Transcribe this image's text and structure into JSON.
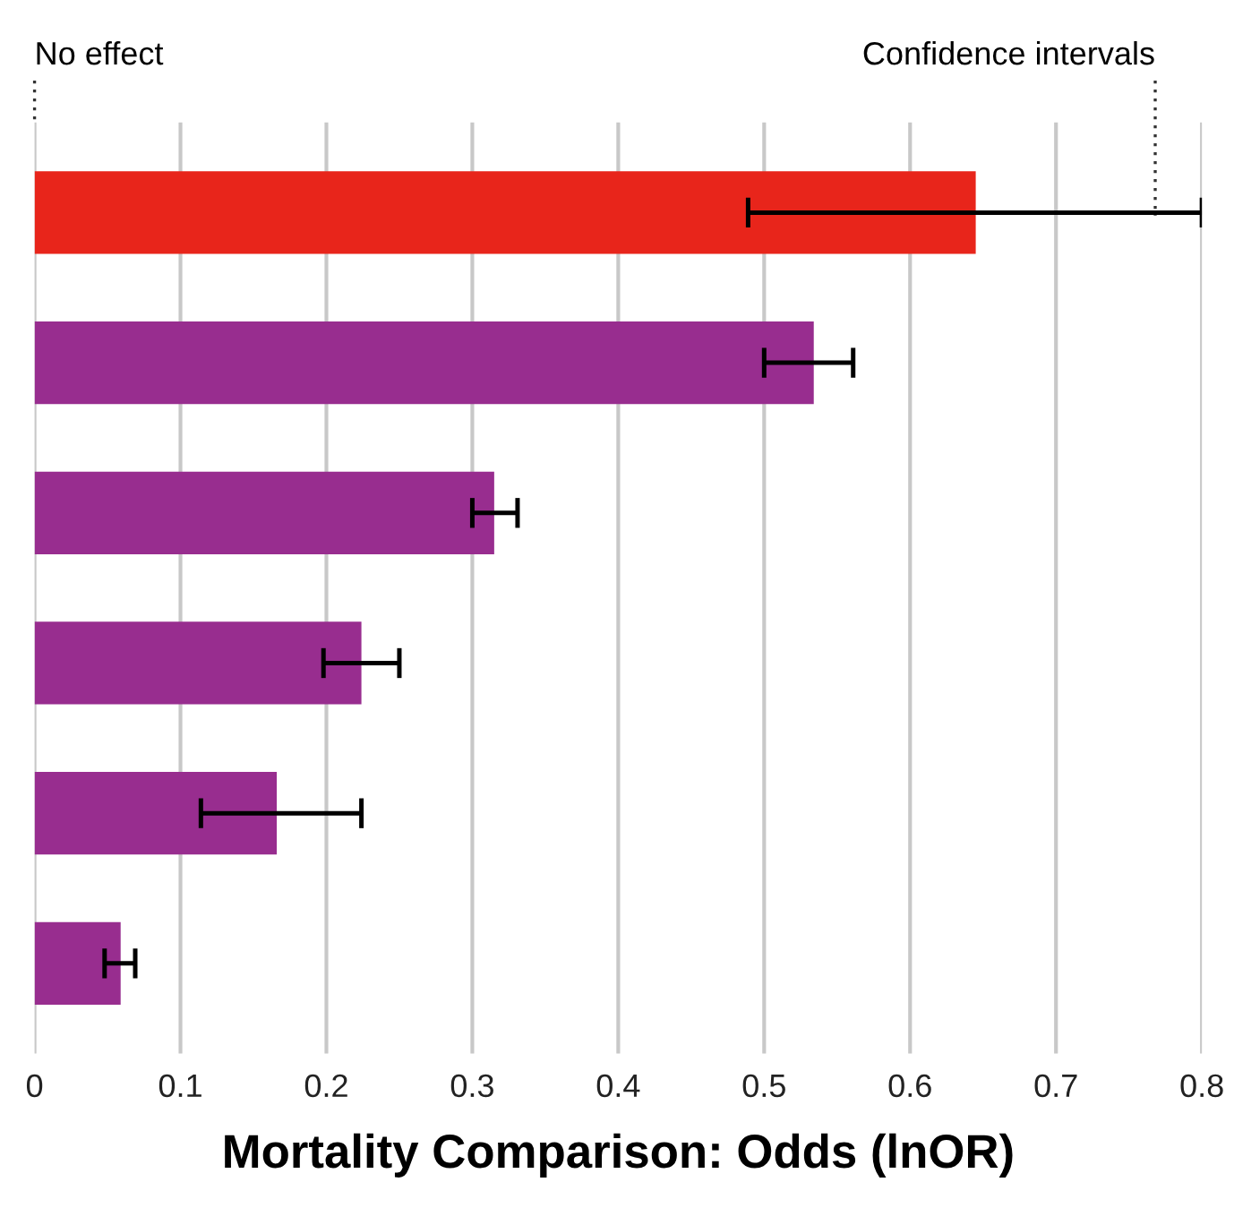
{
  "chart_data": {
    "type": "bar",
    "orientation": "horizontal",
    "xlabel": "Mortality Comparison: Odds (lnOR)",
    "categories": [
      null,
      null,
      null,
      null,
      null,
      null
    ],
    "values": [
      0.645,
      0.534,
      0.315,
      0.224,
      0.166,
      0.059
    ],
    "colors": [
      "#e8251b",
      "#982d8f",
      "#982d8f",
      "#982d8f",
      "#982d8f",
      "#982d8f"
    ],
    "errors": [
      [
        0.489,
        0.8
      ],
      [
        0.5,
        0.561
      ],
      [
        0.3,
        0.331
      ],
      [
        0.198,
        0.25
      ],
      [
        0.114,
        0.224
      ],
      [
        0.048,
        0.069
      ]
    ],
    "xlim": [
      0,
      0.8
    ],
    "xticks": [
      0,
      0.1,
      0.2,
      0.3,
      0.4,
      0.5,
      0.6,
      0.7,
      0.8
    ],
    "grid": "x",
    "tick_labels": "x",
    "annotations": [
      "No effect",
      "Confidence intervals"
    ]
  }
}
